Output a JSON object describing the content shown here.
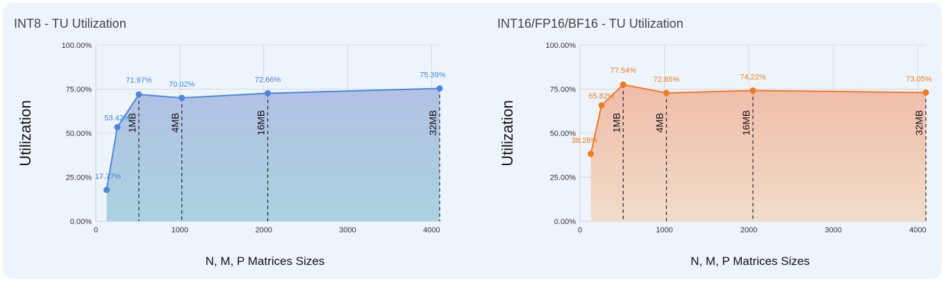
{
  "charts": [
    {
      "title": "INT8 - TU Utilization",
      "color": "#4a86e0",
      "fill_top": "#b2c1e4",
      "fill_bottom": "#a9d3e0",
      "label_color": "#3d86e4"
    },
    {
      "title": "INT16/FP16/BF16 - TU Utilization",
      "color": "#f07a1c",
      "fill_top": "#f0bcaa",
      "fill_bottom": "#f1dcc8",
      "label_color": "#f07a1c"
    }
  ],
  "chart_data": [
    {
      "type": "area",
      "title": "INT8 - TU Utilization",
      "xlabel": "N, M, P Matrices Sizes",
      "ylabel": "Utilization",
      "xlim": [
        0,
        4096
      ],
      "ylim": [
        0,
        100
      ],
      "x_ticks": [
        0,
        1000,
        2000,
        3000,
        4000
      ],
      "y_ticks": [
        "0.00%",
        "25.00%",
        "50.00%",
        "75.00%",
        "100.00%"
      ],
      "grid": true,
      "x": [
        128,
        256,
        512,
        1024,
        2048,
        4096
      ],
      "y": [
        17.77,
        53.42,
        71.97,
        70.02,
        72.66,
        75.39
      ],
      "data_labels": [
        "17.77%",
        "53.42%",
        "71.97%",
        "70.02%",
        "72.66%",
        "75.39%"
      ],
      "annotations": [
        {
          "x": 512,
          "label": "1MB"
        },
        {
          "x": 1024,
          "label": "4MB"
        },
        {
          "x": 2048,
          "label": "16MB"
        },
        {
          "x": 4096,
          "label": "32MB"
        }
      ]
    },
    {
      "type": "area",
      "title": "INT16/FP16/BF16 - TU Utilization",
      "xlabel": "N, M, P Matrices Sizes",
      "ylabel": "Utilization",
      "xlim": [
        0,
        4096
      ],
      "ylim": [
        0,
        100
      ],
      "x_ticks": [
        0,
        1000,
        2000,
        3000,
        4000
      ],
      "y_ticks": [
        "0.00%",
        "25.00%",
        "50.00%",
        "75.00%",
        "100.00%"
      ],
      "grid": true,
      "x": [
        128,
        256,
        512,
        1024,
        2048,
        4096
      ],
      "y": [
        38.28,
        65.82,
        77.54,
        72.85,
        74.22,
        73.05
      ],
      "data_labels": [
        "38.28%",
        "65.82%",
        "77.54%",
        "72.85%",
        "74.22%",
        "73.05%"
      ],
      "annotations": [
        {
          "x": 512,
          "label": "1MB"
        },
        {
          "x": 1024,
          "label": "4MB"
        },
        {
          "x": 2048,
          "label": "16MB"
        },
        {
          "x": 4096,
          "label": "32MB"
        }
      ]
    }
  ]
}
